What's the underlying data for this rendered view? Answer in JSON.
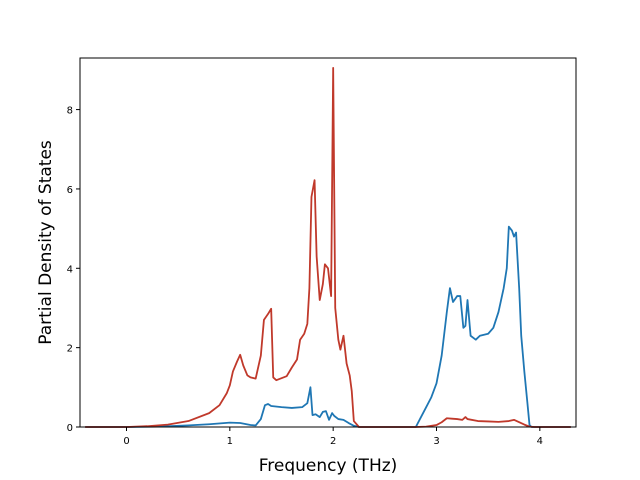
{
  "chart_data": {
    "type": "line",
    "title": "",
    "xlabel": "Frequency (THz)",
    "ylabel": "Partial Density of States",
    "xlim": [
      -0.45,
      4.35
    ],
    "ylim": [
      0,
      9.3
    ],
    "xticks": [
      0,
      1,
      2,
      3,
      4
    ],
    "yticks": [
      0,
      2,
      4,
      6,
      8
    ],
    "grid": false,
    "legend": "none",
    "series": [
      {
        "color": "#1f77b4",
        "points": [
          [
            -0.4,
            0
          ],
          [
            0,
            0
          ],
          [
            0.3,
            0.01
          ],
          [
            0.6,
            0.04
          ],
          [
            0.8,
            0.07
          ],
          [
            1.0,
            0.11
          ],
          [
            1.1,
            0.1
          ],
          [
            1.2,
            0.05
          ],
          [
            1.25,
            0.04
          ],
          [
            1.3,
            0.2
          ],
          [
            1.34,
            0.55
          ],
          [
            1.37,
            0.58
          ],
          [
            1.4,
            0.53
          ],
          [
            1.5,
            0.5
          ],
          [
            1.6,
            0.48
          ],
          [
            1.7,
            0.5
          ],
          [
            1.75,
            0.6
          ],
          [
            1.78,
            1.0
          ],
          [
            1.8,
            0.3
          ],
          [
            1.83,
            0.32
          ],
          [
            1.87,
            0.25
          ],
          [
            1.9,
            0.38
          ],
          [
            1.93,
            0.4
          ],
          [
            1.96,
            0.18
          ],
          [
            1.99,
            0.35
          ],
          [
            2.01,
            0.28
          ],
          [
            2.05,
            0.2
          ],
          [
            2.1,
            0.18
          ],
          [
            2.15,
            0.1
          ],
          [
            2.2,
            0.03
          ],
          [
            2.25,
            0
          ],
          [
            2.8,
            0
          ],
          [
            2.85,
            0.25
          ],
          [
            2.9,
            0.5
          ],
          [
            2.95,
            0.75
          ],
          [
            3.0,
            1.1
          ],
          [
            3.05,
            1.8
          ],
          [
            3.1,
            2.9
          ],
          [
            3.13,
            3.5
          ],
          [
            3.16,
            3.15
          ],
          [
            3.2,
            3.3
          ],
          [
            3.23,
            3.3
          ],
          [
            3.26,
            2.5
          ],
          [
            3.28,
            2.55
          ],
          [
            3.3,
            3.2
          ],
          [
            3.33,
            2.3
          ],
          [
            3.38,
            2.2
          ],
          [
            3.42,
            2.3
          ],
          [
            3.5,
            2.35
          ],
          [
            3.55,
            2.5
          ],
          [
            3.6,
            2.9
          ],
          [
            3.65,
            3.5
          ],
          [
            3.68,
            4.0
          ],
          [
            3.7,
            5.05
          ],
          [
            3.73,
            4.95
          ],
          [
            3.75,
            4.8
          ],
          [
            3.77,
            4.9
          ],
          [
            3.8,
            3.5
          ],
          [
            3.82,
            2.3
          ],
          [
            3.85,
            1.4
          ],
          [
            3.88,
            0.6
          ],
          [
            3.9,
            0.05
          ],
          [
            3.92,
            0
          ],
          [
            4.3,
            0
          ]
        ]
      },
      {
        "color": "#c0392b",
        "points": [
          [
            -0.4,
            0
          ],
          [
            0,
            0
          ],
          [
            0.2,
            0.02
          ],
          [
            0.4,
            0.06
          ],
          [
            0.6,
            0.15
          ],
          [
            0.8,
            0.35
          ],
          [
            0.9,
            0.55
          ],
          [
            0.97,
            0.85
          ],
          [
            1.0,
            1.05
          ],
          [
            1.03,
            1.4
          ],
          [
            1.07,
            1.65
          ],
          [
            1.1,
            1.82
          ],
          [
            1.13,
            1.55
          ],
          [
            1.17,
            1.3
          ],
          [
            1.2,
            1.25
          ],
          [
            1.25,
            1.22
          ],
          [
            1.3,
            1.8
          ],
          [
            1.33,
            2.7
          ],
          [
            1.37,
            2.85
          ],
          [
            1.4,
            2.98
          ],
          [
            1.42,
            1.25
          ],
          [
            1.45,
            1.18
          ],
          [
            1.55,
            1.28
          ],
          [
            1.6,
            1.5
          ],
          [
            1.65,
            1.7
          ],
          [
            1.68,
            2.2
          ],
          [
            1.72,
            2.35
          ],
          [
            1.75,
            2.6
          ],
          [
            1.77,
            3.5
          ],
          [
            1.79,
            5.8
          ],
          [
            1.82,
            6.22
          ],
          [
            1.84,
            4.3
          ],
          [
            1.87,
            3.2
          ],
          [
            1.9,
            3.6
          ],
          [
            1.92,
            4.1
          ],
          [
            1.95,
            4.0
          ],
          [
            1.98,
            3.3
          ],
          [
            2.0,
            9.05
          ],
          [
            2.02,
            3.0
          ],
          [
            2.05,
            2.2
          ],
          [
            2.07,
            1.95
          ],
          [
            2.1,
            2.3
          ],
          [
            2.13,
            1.6
          ],
          [
            2.16,
            1.3
          ],
          [
            2.18,
            0.9
          ],
          [
            2.2,
            0.15
          ],
          [
            2.25,
            0
          ],
          [
            2.8,
            0
          ],
          [
            2.9,
            0.01
          ],
          [
            3.0,
            0.05
          ],
          [
            3.05,
            0.12
          ],
          [
            3.1,
            0.22
          ],
          [
            3.15,
            0.21
          ],
          [
            3.2,
            0.2
          ],
          [
            3.25,
            0.18
          ],
          [
            3.28,
            0.25
          ],
          [
            3.3,
            0.2
          ],
          [
            3.4,
            0.15
          ],
          [
            3.5,
            0.14
          ],
          [
            3.6,
            0.13
          ],
          [
            3.7,
            0.15
          ],
          [
            3.75,
            0.18
          ],
          [
            3.8,
            0.12
          ],
          [
            3.85,
            0.06
          ],
          [
            3.9,
            0.01
          ],
          [
            3.95,
            0
          ],
          [
            4.3,
            0
          ]
        ]
      }
    ]
  }
}
